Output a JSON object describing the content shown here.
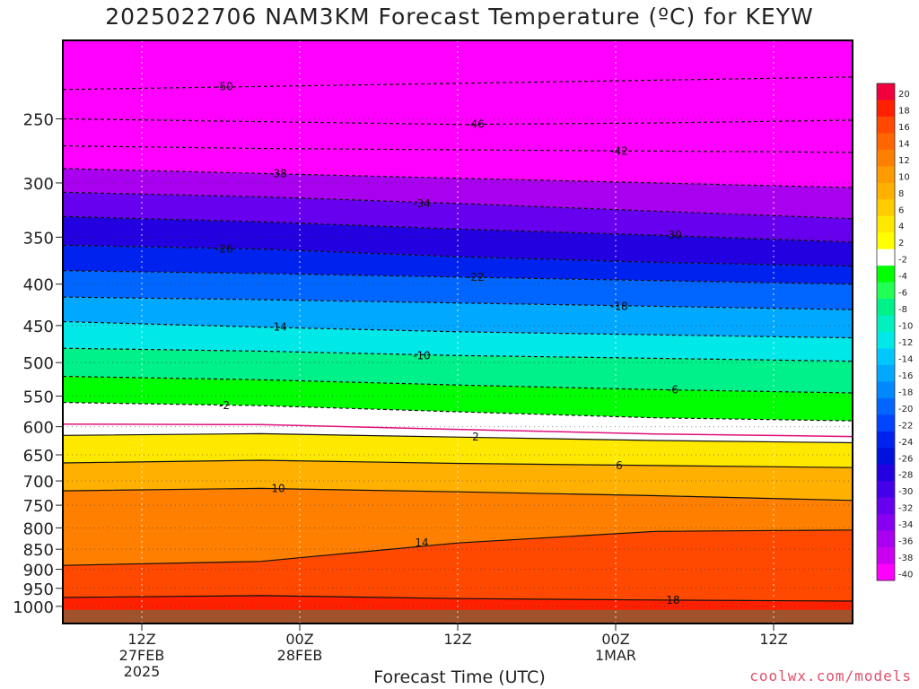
{
  "title": "2025022706 NAM3KM Forecast Temperature (ºC) for KEYW",
  "xaxis_title": "Forecast Time (UTC)",
  "credit": "coolwx.com/models",
  "chart_data": {
    "type": "heatmap",
    "title": "2025022706 NAM3KM Forecast Temperature (ºC) for KEYW",
    "xlabel": "Forecast Time (UTC)",
    "ylabel": "",
    "y_scale": "log-pressure",
    "ylim": [
      1050,
      200
    ],
    "xlim_hours": [
      0,
      60
    ],
    "grid": true,
    "y_ticks": [
      250,
      300,
      350,
      400,
      450,
      500,
      550,
      600,
      650,
      700,
      750,
      800,
      850,
      900,
      950,
      1000
    ],
    "x_ticks": [
      {
        "hour": 6,
        "lines": [
          "12Z",
          "27FEB",
          "2025"
        ]
      },
      {
        "hour": 18,
        "lines": [
          "00Z",
          "28FEB"
        ]
      },
      {
        "hour": 30,
        "lines": [
          "12Z"
        ]
      },
      {
        "hour": 42,
        "lines": [
          "00Z",
          "1MAR"
        ]
      },
      {
        "hour": 54,
        "lines": [
          "12Z"
        ]
      }
    ],
    "colorbar": {
      "labels": [
        "20",
        "18",
        "16",
        "14",
        "12",
        "10",
        "8",
        "6",
        "4",
        "2",
        "-2",
        "-4",
        "-6",
        "-8",
        "-10",
        "-12",
        "-14",
        "-16",
        "-18",
        "-20",
        "-22",
        "-24",
        "-26",
        "-28",
        "-30",
        "-32",
        "-34",
        "-36",
        "-38",
        "-40"
      ],
      "colors": [
        "#f0003c",
        "#ff2000",
        "#ff4800",
        "#ff6600",
        "#ff8000",
        "#ff9a00",
        "#ffb000",
        "#ffcc00",
        "#ffe800",
        "#ffff00",
        "#ffffff",
        "#00ff00",
        "#22ff55",
        "#00f08a",
        "#00f0c0",
        "#00e8e8",
        "#00c8ff",
        "#00a8ff",
        "#0088ff",
        "#0066ff",
        "#0044ff",
        "#0022ee",
        "#0011dd",
        "#2200e0",
        "#4400e8",
        "#6600ee",
        "#8800f0",
        "#aa00f0",
        "#cc00f0",
        "#ff00ff"
      ]
    },
    "series": [
      {
        "name": "-50",
        "pressure": [
          230,
          228,
          226,
          224,
          222
        ]
      },
      {
        "name": "-46",
        "pressure": [
          250,
          252,
          254,
          253,
          251
        ]
      },
      {
        "name": "-42",
        "pressure": [
          270,
          272,
          273,
          274,
          275
        ]
      },
      {
        "name": "-38",
        "pressure": [
          288,
          292,
          296,
          300,
          304
        ]
      },
      {
        "name": "-34",
        "pressure": [
          308,
          312,
          318,
          325,
          332
        ]
      },
      {
        "name": "-30",
        "pressure": [
          330,
          335,
          342,
          348,
          355
        ]
      },
      {
        "name": "-26",
        "pressure": [
          358,
          362,
          370,
          376,
          380
        ]
      },
      {
        "name": "-22",
        "pressure": [
          385,
          388,
          392,
          396,
          400
        ]
      },
      {
        "name": "-18",
        "pressure": [
          415,
          418,
          422,
          426,
          430
        ]
      },
      {
        "name": "-14",
        "pressure": [
          445,
          452,
          458,
          462,
          466
        ]
      },
      {
        "name": "-10",
        "pressure": [
          480,
          484,
          490,
          494,
          498
        ]
      },
      {
        "name": "-6",
        "pressure": [
          520,
          525,
          533,
          540,
          545
        ]
      },
      {
        "name": "-2",
        "pressure": [
          560,
          565,
          575,
          585,
          590
        ]
      },
      {
        "name": "2",
        "pressure": [
          615,
          612,
          618,
          624,
          628
        ]
      },
      {
        "name": "6",
        "pressure": [
          665,
          660,
          666,
          670,
          674
        ]
      },
      {
        "name": "10",
        "pressure": [
          720,
          715,
          722,
          730,
          740
        ]
      },
      {
        "name": "14",
        "pressure": [
          890,
          880,
          835,
          808,
          805
        ]
      },
      {
        "name": "18",
        "pressure": [
          975,
          970,
          978,
          982,
          985
        ]
      }
    ]
  }
}
